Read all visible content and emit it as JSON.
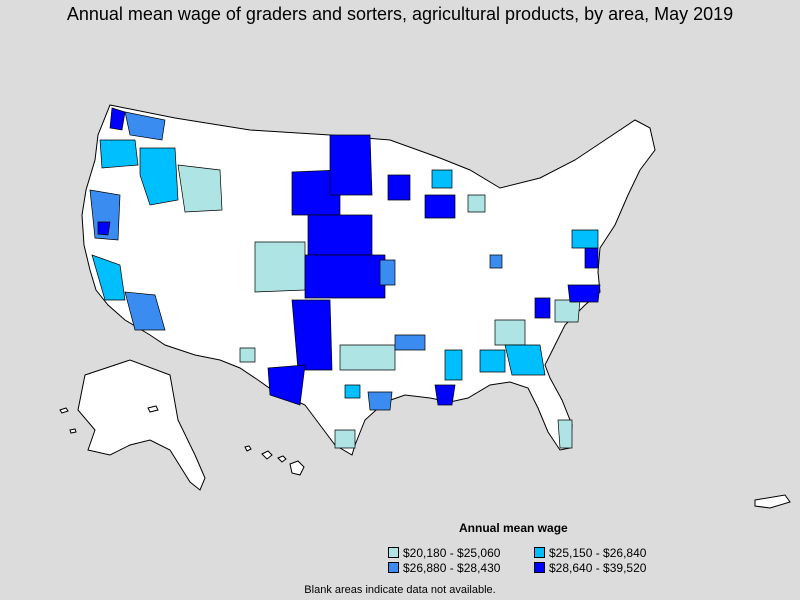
{
  "title": "Annual mean wage of graders and sorters, agricultural products, by area, May 2019",
  "legend": {
    "title": "Annual mean wage",
    "items": [
      {
        "label": "$20,180 - $25,060",
        "color": "#aee4e4"
      },
      {
        "label": "$25,150 - $26,840",
        "color": "#00bfff"
      },
      {
        "label": "$26,880 - $28,430",
        "color": "#3a8cf0"
      },
      {
        "label": "$28,640 - $39,520",
        "color": "#0000ff"
      }
    ]
  },
  "note": "Blank areas indicate data not available.",
  "colors": {
    "background": "#dcdcdc",
    "no_data": "#ffffff",
    "border": "#000000"
  }
}
